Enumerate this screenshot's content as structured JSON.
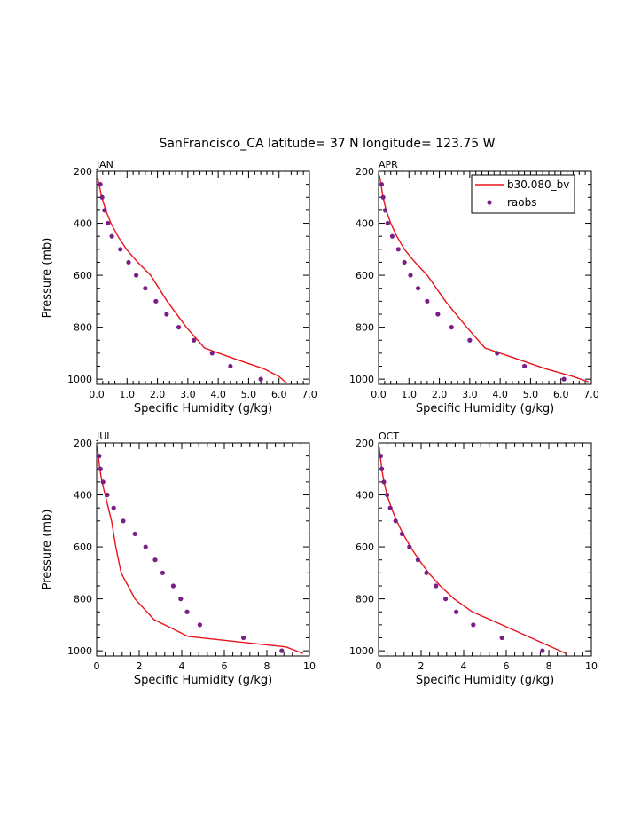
{
  "title": "SanFrancisco_CA  latitude= 37 N longitude= 123.75 W",
  "colors": {
    "model": "#e8141c",
    "obs": "#7a1f86",
    "axis": "#000000"
  },
  "legend": {
    "placement": "top-right of APR panel",
    "model_label": "b30.080_bv",
    "obs_label": "raobs"
  },
  "chart_data": [
    {
      "type": "line",
      "panel": "JAN",
      "xlabel": "Specific Humidity (g/kg)",
      "ylabel": "Pressure (mb)",
      "xlim": [
        0,
        7
      ],
      "ylim": [
        1020,
        200
      ],
      "xticks": [
        0,
        1,
        2,
        3,
        4,
        5,
        6,
        7
      ],
      "xtick_labels": [
        "0.0",
        "1.0",
        "2.0",
        "3.0",
        "4.0",
        "5.0",
        "6.0",
        "7.0"
      ],
      "yticks": [
        200,
        400,
        600,
        800,
        1000
      ],
      "ytick_labels": [
        "200",
        "400",
        "600",
        "800",
        "1000"
      ],
      "series": [
        {
          "name": "b30.080_bv",
          "kind": "line",
          "x": [
            0.03,
            0.08,
            0.17,
            0.3,
            0.47,
            0.7,
            0.98,
            1.35,
            1.78,
            2.32,
            2.95,
            3.55,
            4.5,
            5.5,
            6.0,
            6.25
          ],
          "y": [
            225,
            250,
            300,
            350,
            400,
            450,
            500,
            550,
            600,
            700,
            800,
            880,
            920,
            960,
            990,
            1015
          ]
        },
        {
          "name": "raobs",
          "kind": "scatter",
          "x": [
            0.12,
            0.18,
            0.26,
            0.37,
            0.5,
            0.78,
            1.05,
            1.3,
            1.6,
            1.95,
            2.3,
            2.7,
            3.2,
            3.8,
            4.4,
            5.4
          ],
          "y": [
            250,
            300,
            350,
            400,
            450,
            500,
            550,
            600,
            650,
            700,
            750,
            800,
            850,
            900,
            950,
            1000
          ]
        }
      ]
    },
    {
      "type": "line",
      "panel": "APR",
      "xlabel": "Specific Humidity (g/kg)",
      "ylabel": "",
      "xlim": [
        0,
        7
      ],
      "ylim": [
        1020,
        200
      ],
      "xticks": [
        0,
        1,
        2,
        3,
        4,
        5,
        6,
        7
      ],
      "xtick_labels": [
        "0.0",
        "1.0",
        "2.0",
        "3.0",
        "4.0",
        "5.0",
        "6.0",
        "7.0"
      ],
      "yticks": [
        200,
        400,
        600,
        800,
        1000
      ],
      "ytick_labels": [
        "200",
        "400",
        "600",
        "800",
        "1000"
      ],
      "series": [
        {
          "name": "b30.080_bv",
          "kind": "line",
          "x": [
            0.03,
            0.08,
            0.15,
            0.25,
            0.4,
            0.6,
            0.85,
            1.2,
            1.6,
            2.2,
            2.9,
            3.5,
            4.5,
            5.5,
            6.4,
            6.9
          ],
          "y": [
            215,
            250,
            300,
            350,
            400,
            450,
            500,
            550,
            600,
            700,
            800,
            880,
            920,
            960,
            990,
            1010
          ]
        },
        {
          "name": "raobs",
          "kind": "scatter",
          "x": [
            0.1,
            0.15,
            0.22,
            0.3,
            0.45,
            0.65,
            0.85,
            1.05,
            1.3,
            1.6,
            1.95,
            2.4,
            3.0,
            3.9,
            4.8,
            6.1
          ],
          "y": [
            250,
            300,
            350,
            400,
            450,
            500,
            550,
            600,
            650,
            700,
            750,
            800,
            850,
            900,
            950,
            1000
          ]
        }
      ]
    },
    {
      "type": "line",
      "panel": "JUL",
      "xlabel": "Specific Humidity (g/kg)",
      "ylabel": "Pressure (mb)",
      "xlim": [
        0,
        10
      ],
      "ylim": [
        1020,
        200
      ],
      "xticks": [
        0,
        2,
        4,
        6,
        8,
        10
      ],
      "xtick_labels": [
        "0",
        "2",
        "4",
        "6",
        "8",
        "10"
      ],
      "yticks": [
        200,
        400,
        600,
        800,
        1000
      ],
      "ytick_labels": [
        "200",
        "400",
        "600",
        "800",
        "1000"
      ],
      "series": [
        {
          "name": "b30.080_bv",
          "kind": "line",
          "x": [
            0.03,
            0.08,
            0.15,
            0.25,
            0.4,
            0.55,
            0.7,
            0.9,
            1.15,
            1.8,
            2.7,
            4.3,
            8.9,
            9.7
          ],
          "y": [
            210,
            250,
            300,
            350,
            400,
            450,
            500,
            600,
            700,
            800,
            880,
            945,
            985,
            1010
          ]
        },
        {
          "name": "raobs",
          "kind": "scatter",
          "x": [
            0.12,
            0.18,
            0.3,
            0.5,
            0.8,
            1.25,
            1.8,
            2.3,
            2.75,
            3.1,
            3.6,
            3.95,
            4.25,
            4.85,
            6.9,
            8.7
          ],
          "y": [
            250,
            300,
            350,
            400,
            450,
            500,
            550,
            600,
            650,
            700,
            750,
            800,
            850,
            900,
            950,
            1000
          ]
        }
      ]
    },
    {
      "type": "line",
      "panel": "OCT",
      "xlabel": "Specific Humidity (g/kg)",
      "ylabel": "",
      "xlim": [
        0,
        10
      ],
      "ylim": [
        1020,
        200
      ],
      "xticks": [
        0,
        2,
        4,
        6,
        8,
        10
      ],
      "xtick_labels": [
        "0",
        "2",
        "4",
        "6",
        "8",
        "10"
      ],
      "yticks": [
        200,
        400,
        600,
        800,
        1000
      ],
      "ytick_labels": [
        "200",
        "400",
        "600",
        "800",
        "1000"
      ],
      "series": [
        {
          "name": "b30.080_bv",
          "kind": "line",
          "x": [
            0.03,
            0.08,
            0.15,
            0.25,
            0.4,
            0.6,
            0.85,
            1.15,
            1.5,
            1.9,
            2.35,
            2.9,
            3.55,
            4.4,
            5.8,
            8.8
          ],
          "y": [
            215,
            250,
            300,
            350,
            400,
            450,
            500,
            550,
            600,
            650,
            700,
            750,
            800,
            850,
            900,
            1010
          ]
        },
        {
          "name": "raobs",
          "kind": "scatter",
          "x": [
            0.1,
            0.15,
            0.25,
            0.4,
            0.55,
            0.8,
            1.1,
            1.45,
            1.85,
            2.25,
            2.7,
            3.15,
            3.65,
            4.45,
            5.8,
            7.7
          ],
          "y": [
            250,
            300,
            350,
            400,
            450,
            500,
            550,
            600,
            650,
            700,
            750,
            800,
            850,
            900,
            950,
            1000
          ]
        }
      ]
    }
  ]
}
